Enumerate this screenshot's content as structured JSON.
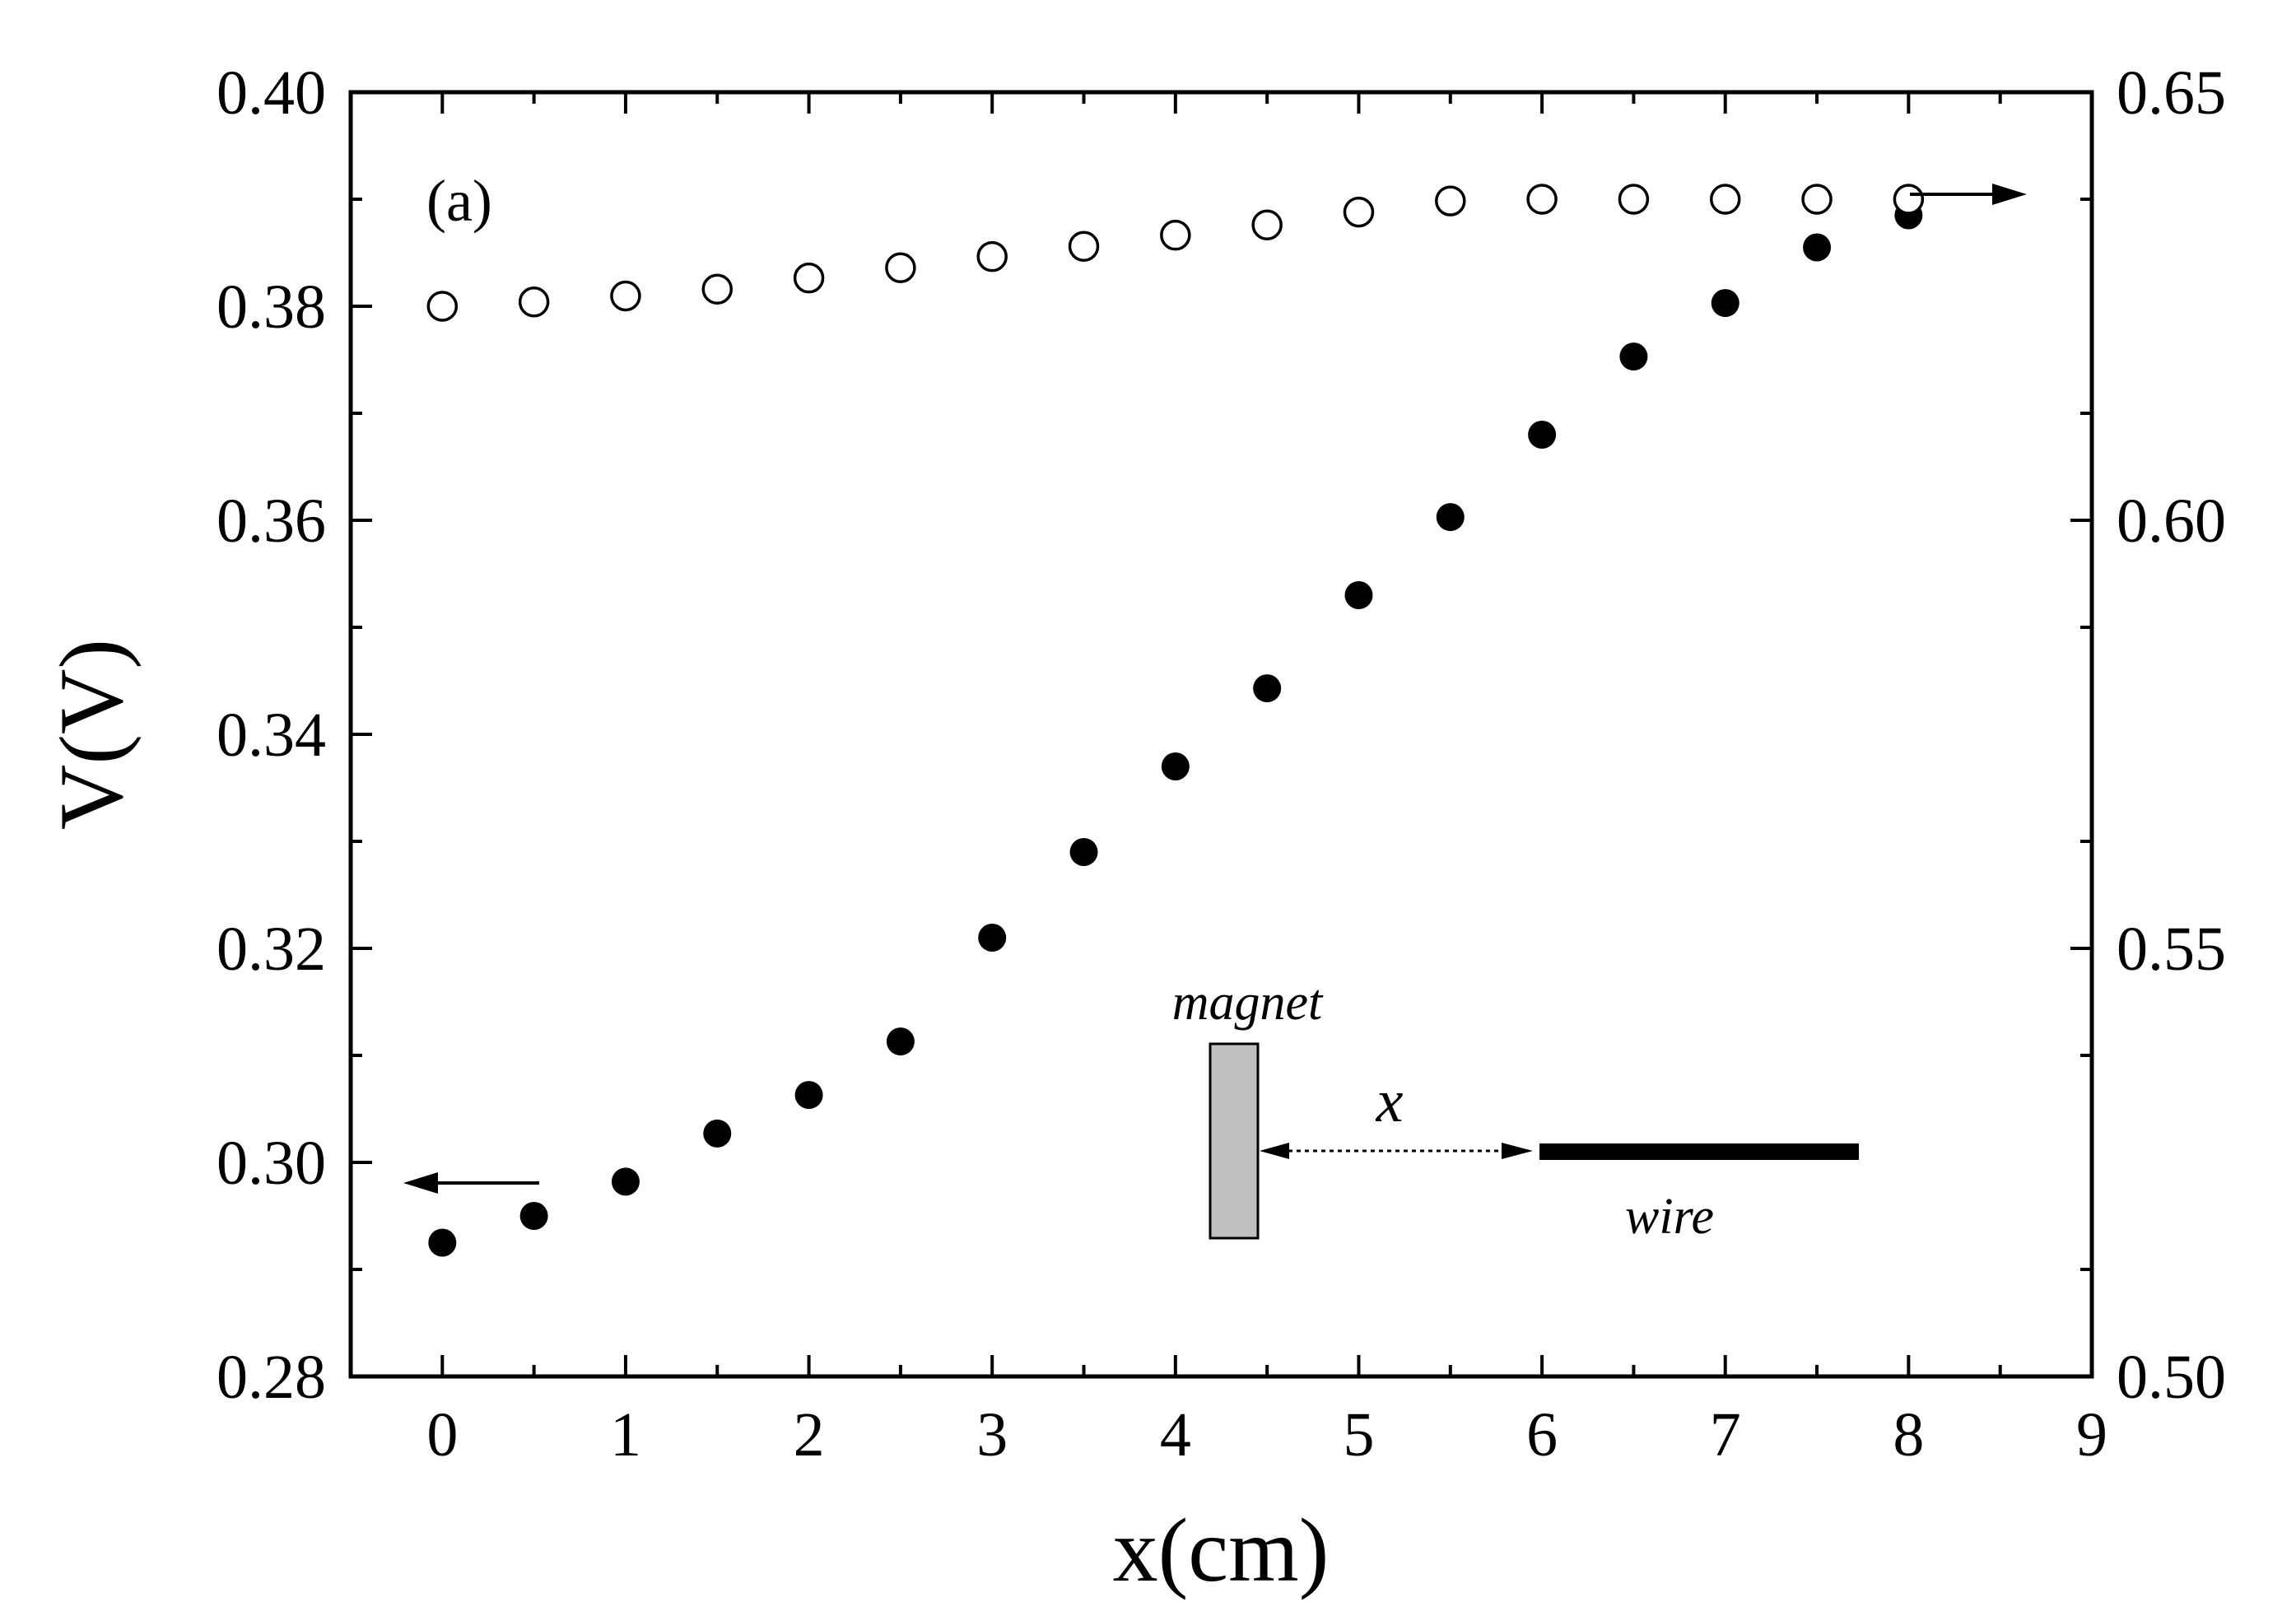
{
  "chart_data": {
    "type": "scatter",
    "panel_label": "(a)",
    "xlabel": "x(cm)",
    "ylabel": "V(V)",
    "xlim": [
      -0.5,
      9
    ],
    "ylim_left": [
      0.28,
      0.4
    ],
    "ylim_right": [
      0.5,
      0.65
    ],
    "x_ticks": [
      "0",
      "1",
      "2",
      "3",
      "4",
      "5",
      "6",
      "7",
      "8",
      "9"
    ],
    "y_ticks_left": [
      "0.28",
      "0.30",
      "0.32",
      "0.34",
      "0.36",
      "0.38",
      "0.40"
    ],
    "y_ticks_right": [
      "0.50",
      "0.55",
      "0.60",
      "0.65"
    ],
    "series": [
      {
        "name": "filled",
        "marker": "filled-circle",
        "axis": "left",
        "x": [
          0,
          0.5,
          1,
          1.5,
          2,
          2.5,
          3,
          3.5,
          4,
          4.5,
          5,
          5.5,
          6,
          6.5,
          7,
          7.5,
          8
        ],
        "y": [
          0.2925,
          0.295,
          0.2982,
          0.3027,
          0.3063,
          0.3113,
          0.321,
          0.329,
          0.337,
          0.3443,
          0.353,
          0.3603,
          0.368,
          0.3753,
          0.3803,
          0.3855,
          0.3885
        ]
      },
      {
        "name": "open",
        "marker": "open-circle",
        "axis": "right",
        "x": [
          0,
          0.5,
          1,
          1.5,
          2,
          2.5,
          3,
          3.5,
          4,
          4.5,
          5,
          5.5,
          6,
          6.5,
          7,
          7.5,
          8
        ],
        "y": [
          0.625,
          0.6255,
          0.6262,
          0.627,
          0.6283,
          0.6295,
          0.6308,
          0.632,
          0.6333,
          0.6345,
          0.636,
          0.6373,
          0.6375,
          0.6375,
          0.6375,
          0.6375,
          0.6375
        ]
      }
    ],
    "inset": {
      "magnet_label": "magnet",
      "distance_label": "x",
      "wire_label": "wire"
    }
  }
}
